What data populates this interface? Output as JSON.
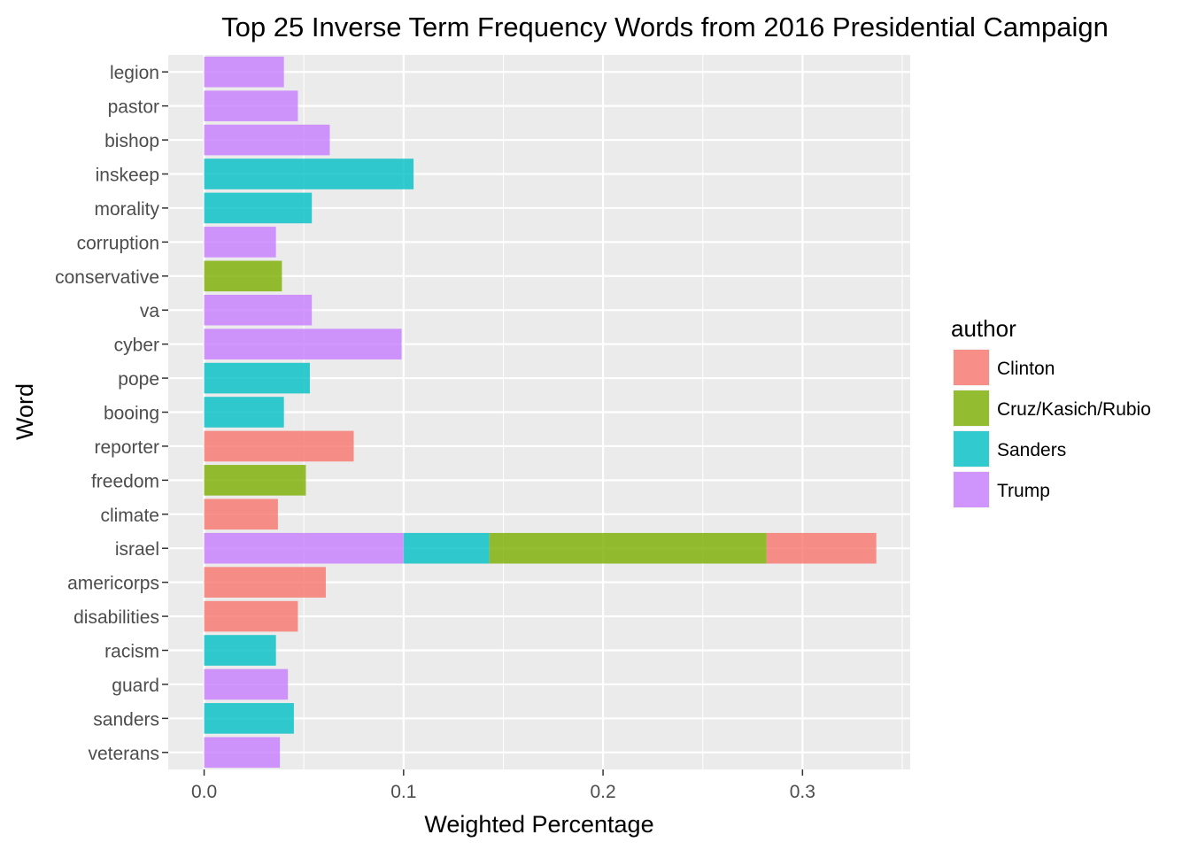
{
  "chart_data": {
    "type": "bar",
    "orientation": "horizontal",
    "stacked": true,
    "title": "Top 25 Inverse Term Frequency Words from 2016 Presidential Campaign",
    "xlabel": "Weighted Percentage",
    "ylabel": "Word",
    "xlim": [
      -0.018,
      0.354
    ],
    "x_ticks": [
      0.0,
      0.1,
      0.2,
      0.3
    ],
    "x_tick_labels": [
      "0.0",
      "0.1",
      "0.2",
      "0.3"
    ],
    "grid": true,
    "legend": {
      "title": "author",
      "position": "right",
      "entries": [
        "Clinton",
        "Cruz/Kasich/Rubio",
        "Sanders",
        "Trump"
      ]
    },
    "colors": {
      "Clinton": "#F8766D",
      "Cruz/Kasich/Rubio": "#7CAE00",
      "Sanders": "#00BFC4",
      "Trump": "#C77CFF",
      "panel": "#EBEBEB",
      "grid": "#FFFFFF"
    },
    "categories": [
      "legion",
      "pastor",
      "bishop",
      "inskeep",
      "morality",
      "corruption",
      "conservative",
      "va",
      "cyber",
      "pope",
      "booing",
      "reporter",
      "freedom",
      "climate",
      "israel",
      "americorps",
      "disabilities",
      "racism",
      "guard",
      "sanders",
      "veterans"
    ],
    "bars": [
      {
        "word": "legion",
        "segments": [
          {
            "author": "Trump",
            "value": 0.04
          }
        ]
      },
      {
        "word": "pastor",
        "segments": [
          {
            "author": "Trump",
            "value": 0.047
          }
        ]
      },
      {
        "word": "bishop",
        "segments": [
          {
            "author": "Trump",
            "value": 0.063
          }
        ]
      },
      {
        "word": "inskeep",
        "segments": [
          {
            "author": "Sanders",
            "value": 0.105
          }
        ]
      },
      {
        "word": "morality",
        "segments": [
          {
            "author": "Sanders",
            "value": 0.054
          }
        ]
      },
      {
        "word": "corruption",
        "segments": [
          {
            "author": "Trump",
            "value": 0.036
          }
        ]
      },
      {
        "word": "conservative",
        "segments": [
          {
            "author": "Cruz/Kasich/Rubio",
            "value": 0.039
          }
        ]
      },
      {
        "word": "va",
        "segments": [
          {
            "author": "Trump",
            "value": 0.054
          }
        ]
      },
      {
        "word": "cyber",
        "segments": [
          {
            "author": "Trump",
            "value": 0.099
          }
        ]
      },
      {
        "word": "pope",
        "segments": [
          {
            "author": "Sanders",
            "value": 0.053
          }
        ]
      },
      {
        "word": "booing",
        "segments": [
          {
            "author": "Sanders",
            "value": 0.04
          }
        ]
      },
      {
        "word": "reporter",
        "segments": [
          {
            "author": "Clinton",
            "value": 0.075
          }
        ]
      },
      {
        "word": "freedom",
        "segments": [
          {
            "author": "Cruz/Kasich/Rubio",
            "value": 0.051
          }
        ]
      },
      {
        "word": "climate",
        "segments": [
          {
            "author": "Clinton",
            "value": 0.037
          }
        ]
      },
      {
        "word": "israel",
        "segments": [
          {
            "author": "Trump",
            "value": 0.1
          },
          {
            "author": "Sanders",
            "value": 0.043
          },
          {
            "author": "Cruz/Kasich/Rubio",
            "value": 0.139
          },
          {
            "author": "Clinton",
            "value": 0.055
          }
        ]
      },
      {
        "word": "americorps",
        "segments": [
          {
            "author": "Clinton",
            "value": 0.061
          }
        ]
      },
      {
        "word": "disabilities",
        "segments": [
          {
            "author": "Clinton",
            "value": 0.047
          }
        ]
      },
      {
        "word": "racism",
        "segments": [
          {
            "author": "Sanders",
            "value": 0.036
          }
        ]
      },
      {
        "word": "guard",
        "segments": [
          {
            "author": "Trump",
            "value": 0.042
          }
        ]
      },
      {
        "word": "sanders",
        "segments": [
          {
            "author": "Sanders",
            "value": 0.045
          }
        ]
      },
      {
        "word": "veterans",
        "segments": [
          {
            "author": "Trump",
            "value": 0.038
          }
        ]
      }
    ]
  }
}
